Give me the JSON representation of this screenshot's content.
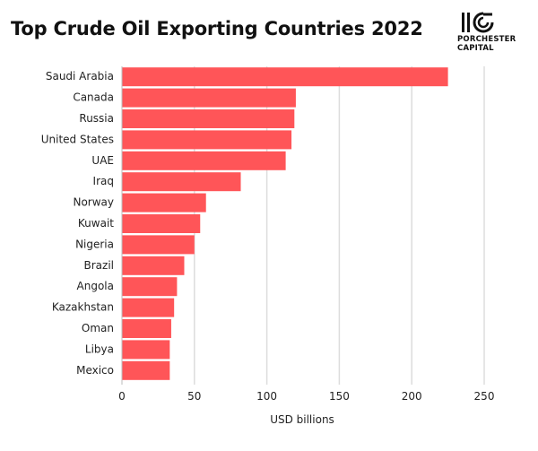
{
  "header": {
    "title": "Top Crude Oil Exporting Countries 2022"
  },
  "logo": {
    "line1": "PORCHESTER",
    "line2": "CAPITAL"
  },
  "chart_data": {
    "type": "bar",
    "orientation": "horizontal",
    "title": "Top Crude Oil Exporting Countries 2022",
    "xlabel": "USD billions",
    "ylabel": "",
    "categories": [
      "Saudi Arabia",
      "Canada",
      "Russia",
      "United States",
      "UAE",
      "Iraq",
      "Norway",
      "Kuwait",
      "Nigeria",
      "Brazil",
      "Angola",
      "Kazakhstan",
      "Oman",
      "Libya",
      "Mexico"
    ],
    "values": [
      225,
      120,
      119,
      117,
      113,
      82,
      58,
      54,
      50,
      43,
      38,
      36,
      34,
      33,
      33
    ],
    "xlim": [
      0,
      250
    ],
    "xticks": [
      0,
      50,
      100,
      150,
      200,
      250
    ],
    "grid": true,
    "bar_color": "#ff5558",
    "grid_color": "#dddddd"
  }
}
